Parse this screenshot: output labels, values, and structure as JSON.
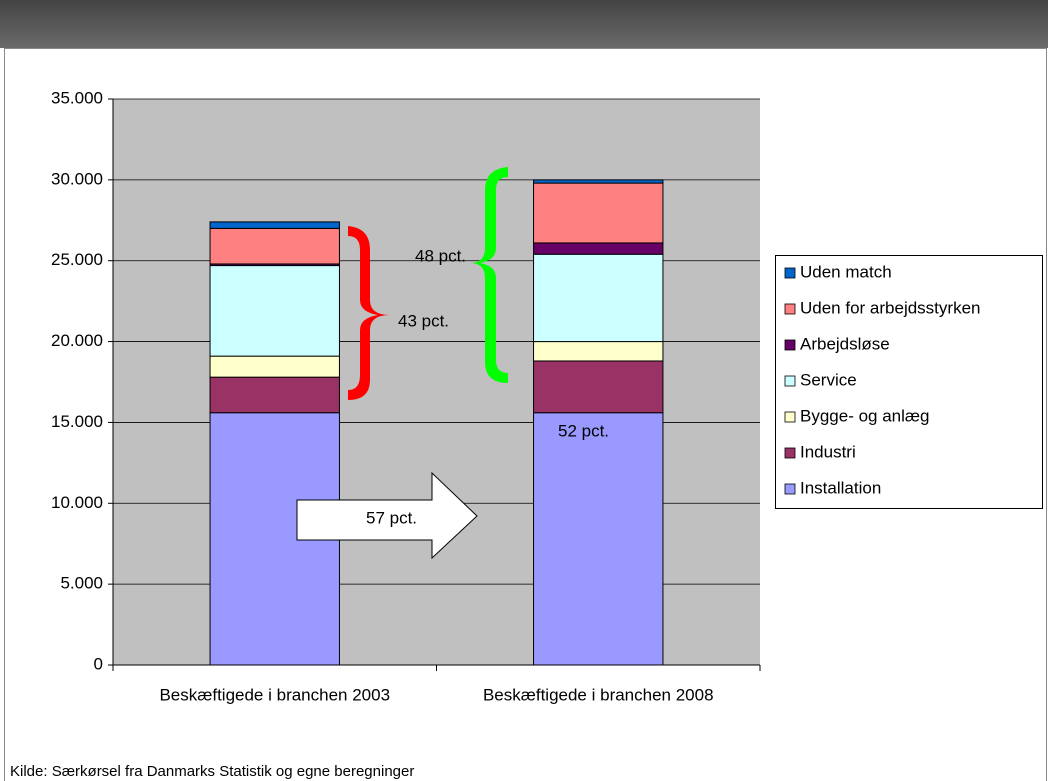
{
  "chart_data": {
    "type": "bar",
    "stacked": true,
    "categories": [
      "Beskæftigede i branchen 2003",
      "Beskæftigede i branchen 2008"
    ],
    "series": [
      {
        "name": "Installation",
        "color": "#9999ff",
        "values": [
          15600,
          15600
        ]
      },
      {
        "name": "Industri",
        "color": "#993366",
        "values": [
          2200,
          3200
        ]
      },
      {
        "name": "Bygge- og anlæg",
        "color": "#ffffcc",
        "values": [
          1300,
          1200
        ]
      },
      {
        "name": "Service",
        "color": "#ccffff",
        "values": [
          5600,
          5400
        ]
      },
      {
        "name": "Arbejdsløse",
        "color": "#660066",
        "values": [
          100,
          700
        ]
      },
      {
        "name": "Uden for arbejdsstyrken",
        "color": "#ff8080",
        "values": [
          2200,
          3700
        ]
      },
      {
        "name": "Uden match",
        "color": "#0066cc",
        "values": [
          400,
          200
        ]
      }
    ],
    "ylim": [
      0,
      35000
    ],
    "yticks": [
      0,
      {
        "value": 5000,
        "label": "5.000"
      },
      {
        "value": 10000,
        "label": "10.000"
      },
      {
        "value": 15000,
        "label": "15.000"
      },
      {
        "value": 20000,
        "label": "20.000"
      },
      {
        "value": 25000,
        "label": "25.000"
      },
      {
        "value": 30000,
        "label": "30.000"
      },
      {
        "value": 35000,
        "label": "35.000"
      }
    ],
    "grid": true,
    "legend": "right",
    "annotations": [
      "48 pct.",
      "43 pct.",
      "52 pct.",
      "57 pct."
    ],
    "source": "Kilde: Særkørsel fra Danmarks Statistik og egne beregninger"
  }
}
